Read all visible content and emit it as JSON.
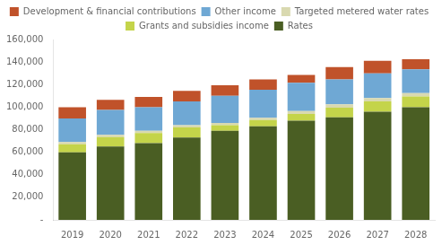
{
  "chart_data": {
    "type": "bar",
    "stacked": true,
    "grid": false,
    "legend": "top",
    "categories": [
      "2019",
      "2020",
      "2021",
      "2022",
      "2023",
      "2024",
      "2025",
      "2026",
      "2027",
      "2028"
    ],
    "series": [
      {
        "name": "Rates",
        "color": "#4a5e23",
        "values": [
          60000,
          65000,
          68000,
          73000,
          79000,
          83000,
          88000,
          91000,
          96000,
          100000
        ]
      },
      {
        "name": "Grants and subsidies income",
        "color": "#c4d44a",
        "values": [
          7000,
          8500,
          9000,
          9000,
          5000,
          5500,
          6000,
          8500,
          9000,
          9500
        ]
      },
      {
        "name": "Targeted metered water rates",
        "color": "#d9d9b0",
        "values": [
          2000,
          2000,
          2000,
          2000,
          2000,
          2000,
          2500,
          3000,
          3000,
          3000
        ]
      },
      {
        "name": "Other income",
        "color": "#6fa8d4",
        "values": [
          21000,
          22000,
          21000,
          21000,
          24000,
          25000,
          25000,
          22000,
          22000,
          21000
        ]
      },
      {
        "name": "Development & financial contributions",
        "color": "#c0522a",
        "values": [
          10000,
          9000,
          9000,
          9500,
          9500,
          9000,
          7000,
          11000,
          11000,
          9000
        ]
      }
    ],
    "ylim": [
      0,
      160000
    ],
    "yticks": [
      {
        "value": 0,
        "label": "-"
      },
      {
        "value": 20000,
        "label": "20,000"
      },
      {
        "value": 40000,
        "label": "40,000"
      },
      {
        "value": 60000,
        "label": "60,000"
      },
      {
        "value": 80000,
        "label": "80,000"
      },
      {
        "value": 100000,
        "label": "100,000"
      },
      {
        "value": 120000,
        "label": "120,000"
      },
      {
        "value": 140000,
        "label": "140,000"
      },
      {
        "value": 160000,
        "label": "160,000"
      }
    ]
  }
}
